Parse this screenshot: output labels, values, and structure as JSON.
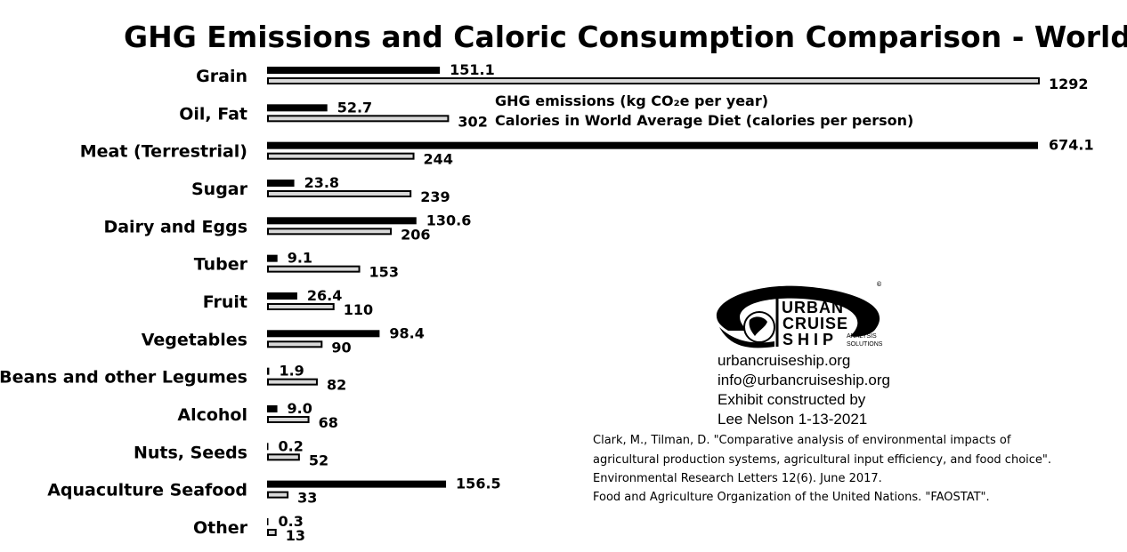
{
  "chart_data": {
    "type": "bar",
    "orientation": "horizontal",
    "title": "GHG Emissions and Caloric Consumption Comparison - World",
    "categories": [
      "Grain",
      "Oil, Fat",
      "Meat (Terrestrial)",
      "Sugar",
      "Dairy and Eggs",
      "Tuber",
      "Fruit",
      "Vegetables",
      "Beans and other Legumes",
      "Alcohol",
      "Nuts, Seeds",
      "Aquaculture Seafood",
      "Other"
    ],
    "series": [
      {
        "name": "GHG emissions (kg CO₂e per year)",
        "color": "#000000",
        "values": [
          151.1,
          52.7,
          674.1,
          23.8,
          130.6,
          9.1,
          26.4,
          98.4,
          1.9,
          9.0,
          0.2,
          156.5,
          0.3
        ],
        "labels": [
          "151.1",
          "52.7",
          "674.1",
          "23.8",
          "130.6",
          "9.1",
          "26.4",
          "98.4",
          "1.9",
          "9.0",
          "0.2",
          "156.5",
          "0.3"
        ]
      },
      {
        "name": "Calories in World Average Diet (calories per person)",
        "color": "#d9d9d9",
        "values": [
          1292,
          302,
          244,
          239,
          206,
          153,
          110,
          90,
          82,
          68,
          52,
          33,
          13
        ],
        "labels": [
          "1292",
          "302",
          "244",
          "239",
          "206",
          "153",
          "110",
          "90",
          "82",
          "68",
          "52",
          "33",
          "13"
        ]
      }
    ],
    "legend_placement": "top-center",
    "grid": false,
    "axes_visible": false
  },
  "logo": {
    "line1": "URBAN",
    "line2": "CRUISE",
    "line3": "SHIP",
    "tag1": "ANALYSIS",
    "tag2": "SOLUTIONS",
    "mark": "®",
    "copyright": "©"
  },
  "contact": {
    "website": "urbancruiseship.org",
    "email": "info@urbancruiseship.org",
    "credit1": "Exhibit constructed by",
    "credit2": "Lee Nelson 1-13-2021"
  },
  "sources": [
    "Clark, M., Tilman, D. \"Comparative analysis of environmental impacts of",
    "agricultural production systems, agricultural input efficiency, and food choice\".",
    "Environmental Research Letters 12(6). June 2017.",
    "Food and Agriculture Organization of the United Nations. \"FAOSTAT\"."
  ]
}
